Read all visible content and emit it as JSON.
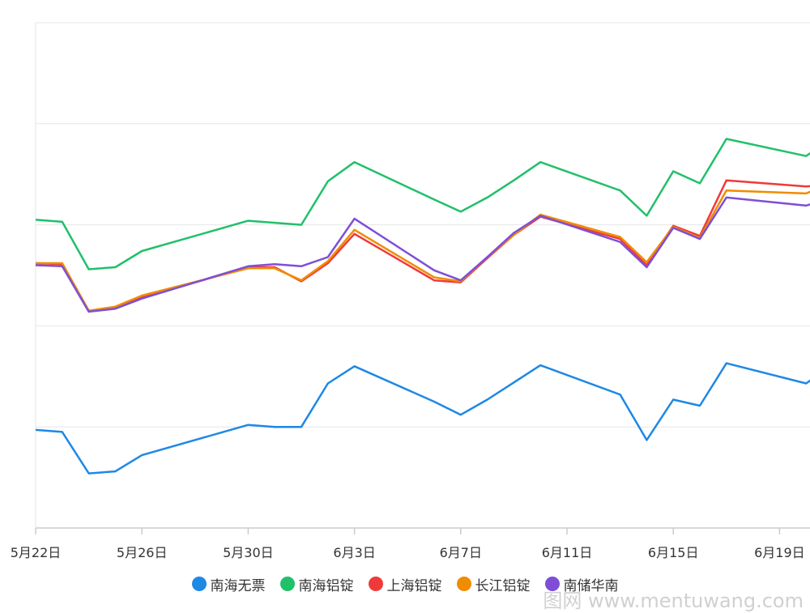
{
  "chart_data": {
    "type": "line",
    "categories": [
      "5月22日",
      "5月23日",
      "5月24日",
      "5月25日",
      "5月26日",
      "5月29日",
      "5月30日",
      "5月31日",
      "6月1日",
      "6月2日",
      "6月5日",
      "6月6日",
      "6月7日",
      "6月8日",
      "6月9日",
      "6月12日",
      "6月13日",
      "6月14日",
      "6月15日",
      "6月16日",
      "6月19日",
      "6月20日"
    ],
    "x_tick_labels": [
      "5月22日",
      "5月26日",
      "5月30日",
      "6月3日",
      "6月7日",
      "6月11日",
      "6月15日",
      "6月19日"
    ],
    "y_gridlines": [
      0,
      1,
      2,
      3,
      4,
      5
    ],
    "ylim": [
      0,
      5
    ],
    "grid": true,
    "legend_position": "bottom",
    "series": [
      {
        "name": "南海无票",
        "color": "#1e88e5",
        "values": [
          0.97,
          0.95,
          0.54,
          0.56,
          0.72,
          1.02,
          1.0,
          1.0,
          1.43,
          1.6,
          1.25,
          1.12,
          1.27,
          1.44,
          1.61,
          1.32,
          0.87,
          1.27,
          1.21,
          1.63,
          1.43,
          1.62
        ]
      },
      {
        "name": "南海铝锭",
        "color": "#21c06a",
        "values": [
          3.05,
          3.03,
          2.56,
          2.58,
          2.74,
          3.04,
          3.02,
          3.0,
          3.43,
          3.62,
          3.25,
          3.13,
          3.27,
          3.44,
          3.62,
          3.34,
          3.09,
          3.53,
          3.41,
          3.85,
          3.68,
          3.86
        ]
      },
      {
        "name": "上海铝锭",
        "color": "#f03a3a",
        "values": [
          2.62,
          2.61,
          2.15,
          2.18,
          2.28,
          2.58,
          2.58,
          2.44,
          2.62,
          2.91,
          2.45,
          2.43,
          2.67,
          2.9,
          3.08,
          2.86,
          2.6,
          2.99,
          2.89,
          3.44,
          3.38,
          3.4
        ]
      },
      {
        "name": "长江铝锭",
        "color": "#f08c00",
        "values": [
          2.62,
          2.62,
          2.15,
          2.19,
          2.3,
          2.57,
          2.57,
          2.45,
          2.64,
          2.95,
          2.48,
          2.44,
          2.68,
          2.9,
          3.1,
          2.88,
          2.63,
          2.98,
          2.87,
          3.34,
          3.31,
          3.42
        ]
      },
      {
        "name": "南储华南",
        "color": "#7e4fd6",
        "values": [
          2.6,
          2.59,
          2.14,
          2.17,
          2.27,
          2.59,
          2.61,
          2.59,
          2.68,
          3.06,
          2.55,
          2.45,
          2.68,
          2.92,
          3.09,
          2.83,
          2.58,
          2.97,
          2.86,
          3.27,
          3.19,
          3.27
        ]
      }
    ]
  },
  "legend": {
    "items": [
      {
        "label": "南海无票",
        "color": "#1e88e5"
      },
      {
        "label": "南海铝锭",
        "color": "#21c06a"
      },
      {
        "label": "上海铝锭",
        "color": "#f03a3a"
      },
      {
        "label": "长江铝锭",
        "color": "#f08c00"
      },
      {
        "label": "南储华南",
        "color": "#7e4fd6"
      }
    ]
  },
  "watermark": {
    "text": "图网 www.mentuwang.com"
  }
}
